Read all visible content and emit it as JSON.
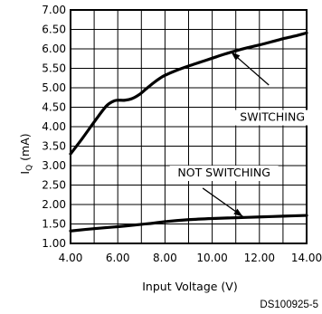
{
  "chart_data": {
    "type": "line",
    "title": "",
    "xlabel": "Input Voltage (V)",
    "ylabel_main": "I",
    "ylabel_sub": "Q",
    "ylabel_unit": "(mA)",
    "xlim": [
      4.0,
      14.0
    ],
    "ylim": [
      1.0,
      7.0
    ],
    "x_ticks": [
      "4.00",
      "6.00",
      "8.00",
      "10.00",
      "12.00",
      "14.00"
    ],
    "y_ticks": [
      "1.00",
      "1.50",
      "2.00",
      "2.50",
      "3.00",
      "3.50",
      "4.00",
      "4.50",
      "5.00",
      "5.50",
      "6.00",
      "6.50",
      "7.00"
    ],
    "grid": true,
    "series": [
      {
        "name": "SWITCHING",
        "x": [
          4.0,
          4.5,
          5.0,
          5.5,
          5.8,
          6.0,
          6.3,
          6.6,
          6.9,
          7.2,
          7.5,
          7.8,
          8.0,
          8.5,
          9.0,
          9.5,
          10.0,
          10.5,
          11.0,
          11.5,
          12.0,
          12.5,
          13.0,
          13.5,
          14.0
        ],
        "y": [
          3.3,
          3.7,
          4.12,
          4.52,
          4.65,
          4.68,
          4.68,
          4.72,
          4.82,
          4.97,
          5.12,
          5.25,
          5.32,
          5.45,
          5.56,
          5.66,
          5.76,
          5.86,
          5.95,
          6.03,
          6.1,
          6.18,
          6.26,
          6.33,
          6.41
        ]
      },
      {
        "name": "NOT SWITCHING",
        "x": [
          4.0,
          5.0,
          6.0,
          7.0,
          7.5,
          8.0,
          9.0,
          10.0,
          11.0,
          12.0,
          13.0,
          14.0
        ],
        "y": [
          1.32,
          1.38,
          1.43,
          1.49,
          1.52,
          1.56,
          1.61,
          1.64,
          1.66,
          1.68,
          1.7,
          1.72
        ]
      }
    ],
    "annotations": {
      "switching_label": "SWITCHING",
      "not_switching_label": "NOT SWITCHING",
      "switching_arrow_from": [
        12.4,
        5.07
      ],
      "switching_arrow_to": [
        10.8,
        5.92
      ],
      "not_switching_arrow_from": [
        9.6,
        2.42
      ],
      "not_switching_arrow_to": [
        11.3,
        1.69
      ]
    },
    "figure_code": "DS100925-5"
  }
}
